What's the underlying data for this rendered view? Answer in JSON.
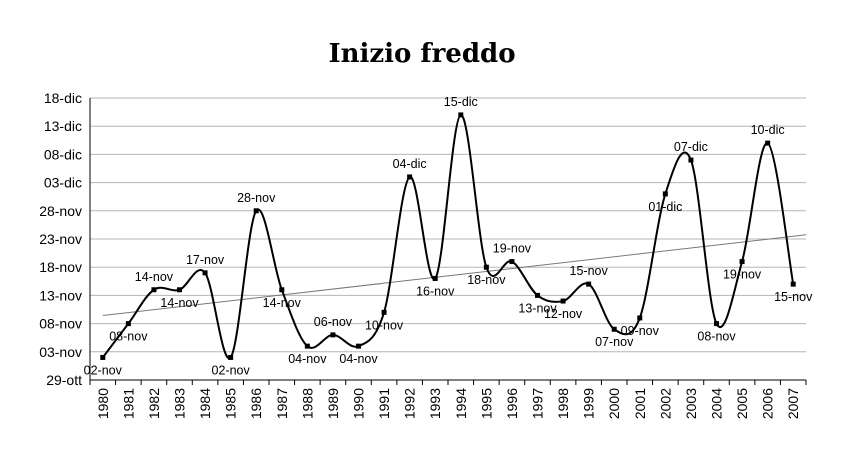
{
  "chart_data": {
    "type": "line",
    "title": "Inizio freddo",
    "xlabel": "",
    "ylabel": "",
    "y_tick_labels": [
      "29-ott",
      "03-nov",
      "08-nov",
      "13-nov",
      "18-nov",
      "23-nov",
      "28-nov",
      "03-dic",
      "08-dic",
      "13-dic",
      "18-dic"
    ],
    "ylim": [
      "29-ott",
      "18-dic"
    ],
    "grid": true,
    "legend": "none",
    "trendline": "linear",
    "x": [
      "1980",
      "1981",
      "1982",
      "1983",
      "1984",
      "1985",
      "1986",
      "1987",
      "1988",
      "1989",
      "1990",
      "1991",
      "1992",
      "1993",
      "1994",
      "1995",
      "1996",
      "1997",
      "1998",
      "1999",
      "2000",
      "2001",
      "2002",
      "2003",
      "2004",
      "2005",
      "2006",
      "2007"
    ],
    "values": [
      "02-nov",
      "08-nov",
      "14-nov",
      "14-nov",
      "17-nov",
      "02-nov",
      "28-nov",
      "14-nov",
      "04-nov",
      "06-nov",
      "04-nov",
      "10-nov",
      "04-dic",
      "16-nov",
      "15-dic",
      "18-nov",
      "19-nov",
      "13-nov",
      "12-nov",
      "15-nov",
      "07-nov",
      "09-nov",
      "01-dic",
      "07-dic",
      "08-nov",
      "19-nov",
      "10-dic",
      "15-nov"
    ],
    "data_labels": [
      "02-nov",
      "08-nov",
      "14-nov",
      "14-nov",
      "17-nov",
      "02-nov",
      "28-nov",
      "14-nov",
      "04-nov",
      "06-nov",
      "04-nov",
      "10-nov",
      "04-dic",
      "16-nov",
      "15-dic",
      "18-nov",
      "19-nov",
      "13-nov",
      "12-nov",
      "15-nov",
      "07-nov",
      "09-nov",
      "01-dic",
      "07-dic",
      "08-nov",
      "19-nov",
      "10-dic",
      "15-nov"
    ],
    "colors": {
      "series": "#000000",
      "trendline": "#777777",
      "grid": "#b5b5b5"
    }
  }
}
